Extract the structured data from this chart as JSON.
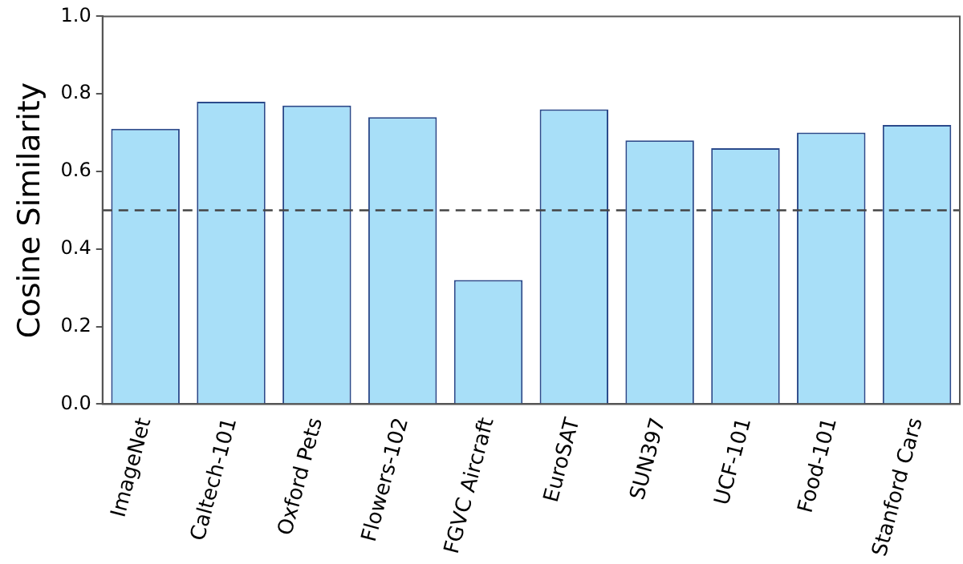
{
  "chart_data": {
    "type": "bar",
    "ylabel": "Cosine Similarity",
    "categories": [
      "ImageNet",
      "Caltech-101",
      "Oxford Pets",
      "Flowers-102",
      "FGVC Aircraft",
      "EuroSAT",
      "SUN397",
      "UCF-101",
      "Food-101",
      "Stanford Cars"
    ],
    "values": [
      0.71,
      0.78,
      0.77,
      0.74,
      0.32,
      0.76,
      0.68,
      0.66,
      0.7,
      0.72
    ],
    "color": "#a8dff8",
    "ylim": [
      0,
      1
    ],
    "yticks": [
      {
        "value": 0,
        "label": "0.0"
      },
      0.2,
      0.4,
      0.6,
      0.8,
      {
        "value": 1,
        "label": "1.0"
      }
    ],
    "ref_lines": [
      {
        "axis": "y",
        "value": 0.5,
        "line_style": "dashed",
        "color": "#444444"
      }
    ],
    "grid": false,
    "legend": false
  }
}
